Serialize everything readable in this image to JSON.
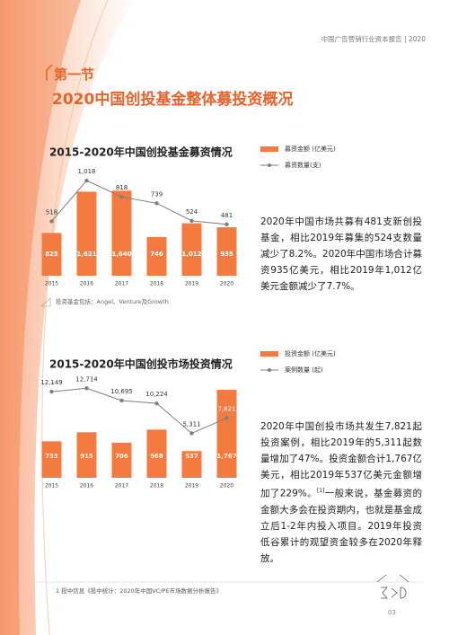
{
  "header": "中国广告营销行业资本报告 | 2020",
  "section": "第一节",
  "title": "2020中国创投基金整体募投资概况",
  "chart_data": [
    {
      "type": "bar",
      "title": "2015-2020年中国创投基金募资情况",
      "categories": [
        "2015",
        "2016",
        "2017",
        "2018",
        "2019",
        "2020"
      ],
      "series": [
        {
          "name": "募资金额 (亿美元)",
          "type": "bar",
          "color": "#f47b3f",
          "values": [
            825,
            1621,
            1640,
            746,
            1012,
            935
          ],
          "value_labels": [
            "825",
            "1,621",
            "1,640",
            "746",
            "1,012",
            "935"
          ]
        },
        {
          "name": "募资数量(支)",
          "type": "line",
          "axis": "y2",
          "color": "#7f7f7f",
          "values": [
            518,
            1018,
            818,
            739,
            524,
            481
          ],
          "value_labels": [
            "518",
            "1,018",
            "818",
            "739",
            "524",
            "481"
          ]
        }
      ],
      "ylim": [
        0,
        2200
      ],
      "y2lim": [
        -150,
        1250
      ],
      "note": "投资基金包括：Angel、Venture及Growth"
    },
    {
      "type": "bar",
      "title": "2015-2020年中国创投市场投资情况",
      "categories": [
        "2015",
        "2016",
        "2017",
        "2018",
        "2019",
        "2020"
      ],
      "series": [
        {
          "name": "投资金额 (亿美元)",
          "type": "bar",
          "color": "#f47b3f",
          "values": [
            733,
            915,
            706,
            968,
            537,
            1767
          ],
          "value_labels": [
            "733",
            "915",
            "706",
            "968",
            "537",
            "1,767"
          ]
        },
        {
          "name": "案例数量 (起)",
          "type": "line",
          "axis": "y2",
          "color": "#7f7f7f",
          "values": [
            12149,
            12714,
            10695,
            10224,
            5311,
            7821
          ],
          "value_labels": [
            "12,149",
            "12,714",
            "10,695",
            "10,224",
            "5,311",
            "7,821"
          ]
        }
      ],
      "ylim": [
        0,
        2200
      ],
      "y2lim": [
        -2000,
        16000
      ]
    }
  ],
  "paragraphs": [
    "2020年中国市场共募有481支新创投基金，相比2019年募集的524支数量减少了8.2%。2020年中国市场合计募资935亿美元，相比2019年1,012亿美元金额减少了7.7%。",
    {
      "before": "2020年中国创投市场共发生7,821起投资案例，相比2019年的5,311起数量增加了47%。投资金额合计1,767亿美元，相比2019年537亿美元金额增加了229%。",
      "ref": "[1]",
      "after": "一般来说，基金募资的金额大多会在投资期内，也就是基金成立后1-2年内投入项目。2019年投资低谷累计的观望资金较多在2020年释放。"
    }
  ],
  "footnote": "1 投中信息《投中统计：2020年中国VC/PE市场数据分析报告》",
  "page_number": "03"
}
